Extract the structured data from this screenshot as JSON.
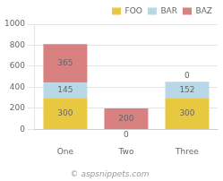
{
  "chart_data": {
    "type": "bar",
    "stacked": true,
    "categories": [
      "One",
      "Two",
      "Three"
    ],
    "series": [
      {
        "name": "FOO",
        "color": "#E8C840",
        "values": [
          300,
          0,
          300
        ],
        "value_labels": [
          "300",
          "0",
          "300"
        ]
      },
      {
        "name": "BAR",
        "color": "#B8D8E8",
        "values": [
          145,
          0,
          152
        ],
        "value_labels": [
          "145",
          null,
          "152"
        ]
      },
      {
        "name": "BAZ",
        "color": "#D98080",
        "values": [
          365,
          200,
          0
        ],
        "value_labels": [
          "365",
          "200",
          "0"
        ]
      }
    ],
    "ylim": [
      0,
      1000
    ],
    "yticks": [
      0,
      200,
      400,
      600,
      800,
      1000
    ],
    "grid": true,
    "legend": "upper right",
    "data_labels": true,
    "annotations": [
      "© aspsnippets.com"
    ]
  }
}
